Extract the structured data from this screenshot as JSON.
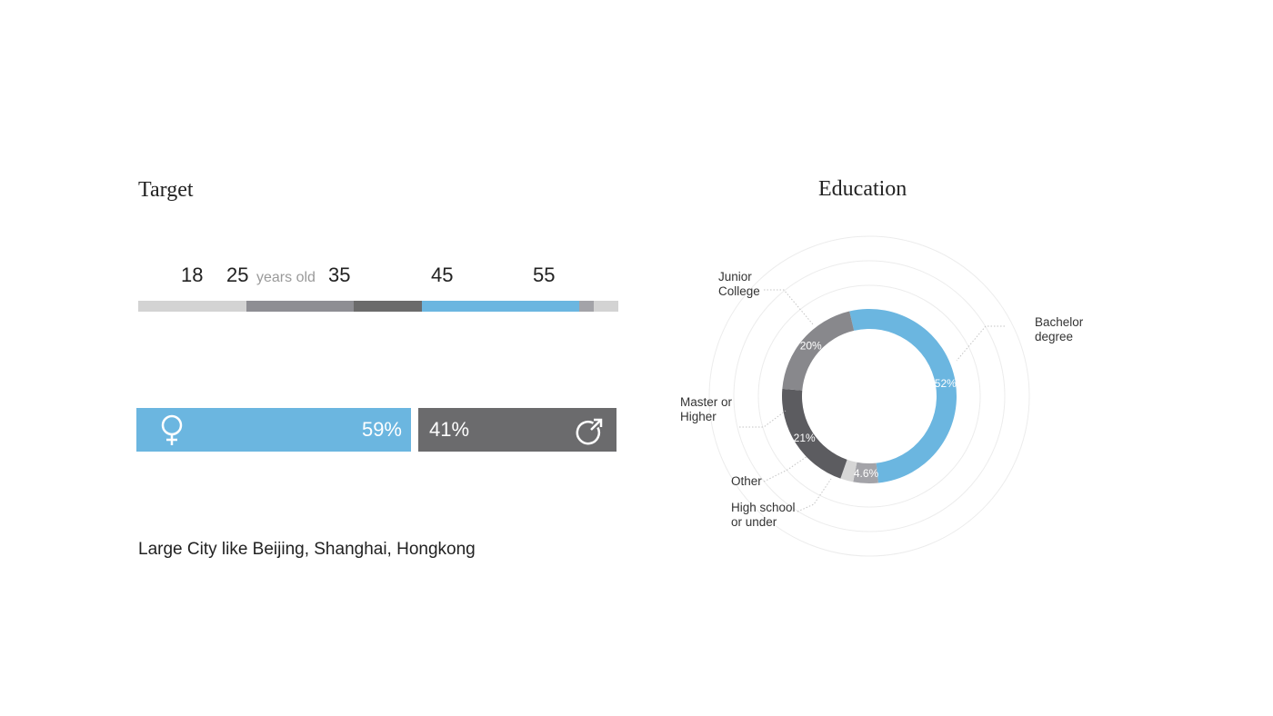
{
  "target": {
    "title": "Target",
    "age": {
      "ticks": [
        {
          "label": "18",
          "value": 18
        },
        {
          "label": "25",
          "value": 25
        },
        {
          "label": "35",
          "value": 35
        },
        {
          "label": "45",
          "value": 45
        },
        {
          "label": "55",
          "value": 55
        }
      ],
      "unit_label": "years old",
      "axis_range": [
        11,
        60
      ],
      "segments": [
        {
          "from": 11,
          "to": 22,
          "color": "#d3d3d3"
        },
        {
          "from": 22,
          "to": 33,
          "color": "#8e8e93"
        },
        {
          "from": 33,
          "to": 40,
          "color": "#6b6b6b"
        },
        {
          "from": 40,
          "to": 56,
          "color": "#6bb6e0"
        },
        {
          "from": 56,
          "to": 57.5,
          "color": "#a3a3a8"
        },
        {
          "from": 57.5,
          "to": 60,
          "color": "#d3d3d3"
        }
      ]
    },
    "gender": {
      "female": {
        "label": "59%",
        "value": 59,
        "icon": "female-icon",
        "color": "#6bb6e0"
      },
      "male": {
        "label": "41%",
        "value": 41,
        "icon": "male-icon",
        "color": "#6b6b6d"
      }
    },
    "location": "Large City like Beijing, Shanghai, Hongkong"
  },
  "education": {
    "title": "Education",
    "labels": {
      "junior_college": [
        "Junior",
        "College"
      ],
      "bachelor": [
        "Bachelor",
        "degree"
      ],
      "master": [
        "Master or",
        "Higher"
      ],
      "other": [
        "Other"
      ],
      "high_school": [
        "High school",
        "or under"
      ]
    }
  },
  "chart_data": {
    "type": "pie",
    "title": "Education",
    "categories": [
      "Bachelor degree",
      "High school or under",
      "Other",
      "Master or Higher",
      "Junior College"
    ],
    "values": [
      52,
      4.6,
      2.4,
      21,
      20
    ],
    "value_labels": [
      "52%",
      "4.6%",
      "",
      "21%",
      "20%"
    ],
    "colors": [
      "#6bb6e0",
      "#a3a3a8",
      "#d6d6d6",
      "#5c5c60",
      "#88888c"
    ]
  }
}
